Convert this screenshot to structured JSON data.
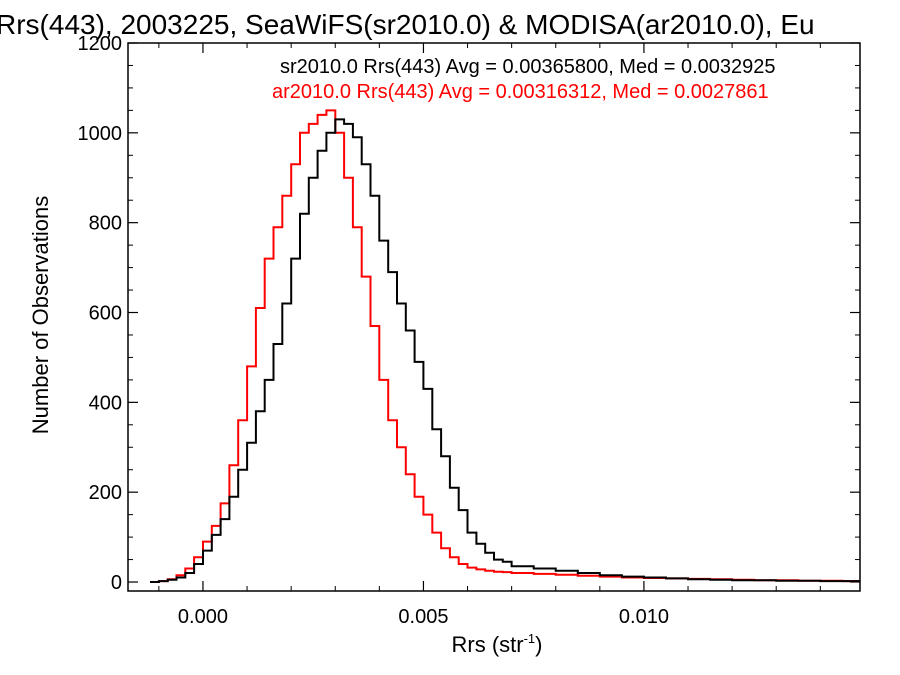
{
  "chart_data": {
    "type": "line",
    "title": "Rrs(443), 2003225, SeaWiFS(sr2010.0) & MODISA(ar2010.0), Eu",
    "xlabel_main": "Rrs (str",
    "xlabel_sup": "-1",
    "xlabel_close": ")",
    "ylabel": "Number of Observations",
    "xlim": [
      -0.0017,
      0.0149
    ],
    "ylim": [
      -20,
      1200
    ],
    "xticks": [
      0.0,
      0.005,
      0.01
    ],
    "xtick_labels": [
      "0.000",
      "0.005",
      "0.010"
    ],
    "yticks": [
      0,
      200,
      400,
      600,
      800,
      1000,
      1200
    ],
    "ytick_labels": [
      "0",
      "200",
      "400",
      "600",
      "800",
      "1000",
      "1200"
    ],
    "annotations": [
      "sr2010.0 Rrs(443) Avg = 0.00365800, Med = 0.0032925",
      "ar2010.0 Rrs(443) Avg = 0.00316312, Med = 0.0027861"
    ],
    "series": [
      {
        "color": "#000000",
        "x": [
          -0.0012,
          -0.001,
          -0.0008,
          -0.0006,
          -0.0004,
          -0.0002,
          0.0,
          0.0002,
          0.0004,
          0.0006,
          0.0008,
          0.001,
          0.0012,
          0.0014,
          0.0016,
          0.0018,
          0.002,
          0.0022,
          0.0024,
          0.0026,
          0.0028,
          0.003,
          0.0032,
          0.0034,
          0.0036,
          0.0038,
          0.004,
          0.0042,
          0.0044,
          0.0046,
          0.0048,
          0.005,
          0.0052,
          0.0054,
          0.0056,
          0.0058,
          0.006,
          0.0062,
          0.0064,
          0.0066,
          0.0068,
          0.007,
          0.0075,
          0.008,
          0.0085,
          0.009,
          0.0095,
          0.01,
          0.0105,
          0.011,
          0.0115,
          0.012,
          0.0125,
          0.013,
          0.0135,
          0.014,
          0.0145
        ],
        "y": [
          0,
          2,
          5,
          10,
          20,
          40,
          70,
          105,
          140,
          190,
          250,
          310,
          380,
          450,
          530,
          620,
          720,
          820,
          900,
          960,
          1000,
          1030,
          1020,
          990,
          930,
          860,
          760,
          690,
          620,
          560,
          490,
          430,
          340,
          280,
          210,
          160,
          110,
          85,
          65,
          50,
          45,
          35,
          30,
          25,
          20,
          15,
          12,
          10,
          8,
          6,
          5,
          4,
          4,
          3,
          3,
          2,
          2
        ]
      },
      {
        "color": "#ff0000",
        "x": [
          -0.0012,
          -0.001,
          -0.0008,
          -0.0006,
          -0.0004,
          -0.0002,
          0.0,
          0.0002,
          0.0004,
          0.0006,
          0.0008,
          0.001,
          0.0012,
          0.0014,
          0.0016,
          0.0018,
          0.002,
          0.0022,
          0.0024,
          0.0026,
          0.0028,
          0.003,
          0.0032,
          0.0034,
          0.0036,
          0.0038,
          0.004,
          0.0042,
          0.0044,
          0.0046,
          0.0048,
          0.005,
          0.0052,
          0.0054,
          0.0056,
          0.0058,
          0.006,
          0.0062,
          0.0064,
          0.0066,
          0.0068,
          0.007,
          0.0075,
          0.008,
          0.0085,
          0.009,
          0.0095,
          0.01,
          0.0105,
          0.011,
          0.0115,
          0.012,
          0.0125,
          0.013,
          0.0135,
          0.014,
          0.0145
        ],
        "y": [
          0,
          2,
          6,
          15,
          30,
          55,
          90,
          125,
          175,
          260,
          360,
          480,
          610,
          720,
          790,
          860,
          930,
          1000,
          1020,
          1040,
          1050,
          1000,
          900,
          790,
          680,
          570,
          450,
          360,
          300,
          240,
          190,
          150,
          110,
          75,
          55,
          40,
          32,
          28,
          25,
          23,
          22,
          20,
          18,
          16,
          14,
          12,
          10,
          9,
          8,
          7,
          6,
          5,
          4,
          4,
          3,
          3,
          2
        ]
      }
    ]
  }
}
